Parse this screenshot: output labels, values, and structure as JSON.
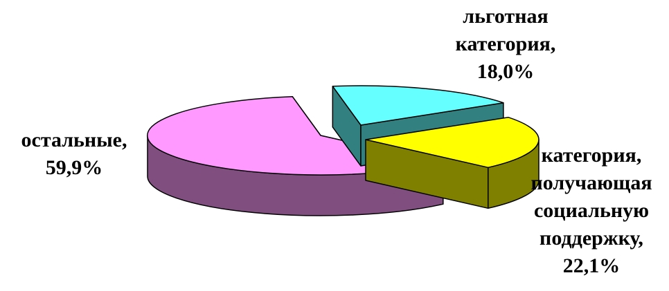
{
  "chart_data": {
    "type": "pie",
    "title": "",
    "style": "3d-exploded",
    "legend": "none",
    "slices": [
      {
        "label_lines": [
          "остальные,"
        ],
        "value": 59.9,
        "value_text": "59,9%",
        "color": "#FF99FF",
        "side_color": "#804F80",
        "edge_color": "#804F80"
      },
      {
        "label_lines": [
          "льготная",
          "категория,"
        ],
        "value": 18.0,
        "value_text": "18,0%",
        "color": "#66FFFF",
        "side_color": "#338080",
        "edge_color": "#338080"
      },
      {
        "label_lines": [
          "категория,",
          "получающая",
          "социальную",
          "поддержку,"
        ],
        "value": 22.1,
        "value_text": "22,1%",
        "color": "#FFFF00",
        "side_color": "#808000",
        "edge_color": "#808000"
      }
    ]
  }
}
